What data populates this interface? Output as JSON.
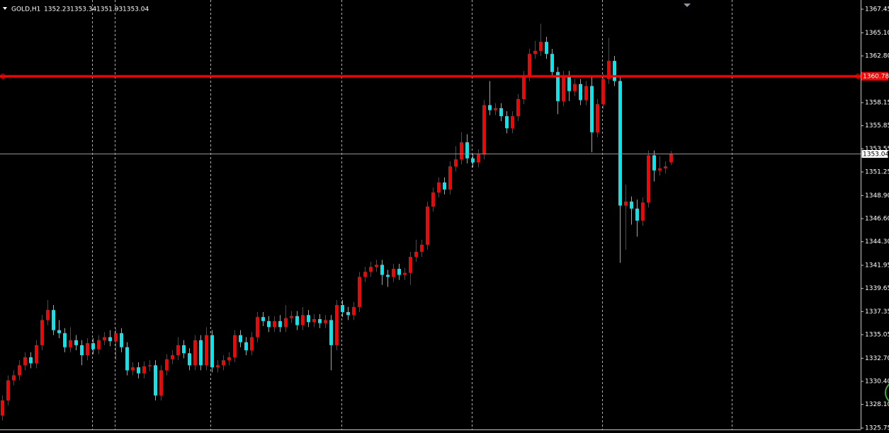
{
  "chart_data": {
    "type": "candlestick",
    "title": "GOLD,H1",
    "up_color": "#ff0000",
    "down_color": "#00e8f0",
    "open": [
      1327.0,
      1328.5,
      1330.5,
      1331.0,
      1332.0,
      1332.8,
      1332.2,
      1334.0,
      1336.5,
      1337.5,
      1335.5,
      1335.2,
      1333.8,
      1334.5,
      1334.0,
      1333.0,
      1334.2,
      1333.6,
      1334.5,
      1334.8,
      1334.4,
      1335.2,
      1333.8,
      1331.5,
      1331.8,
      1331.2,
      1331.9,
      1332.0,
      1329.0,
      1331.5,
      1332.6,
      1333.0,
      1334.0,
      1333.2,
      1332.0,
      1334.5,
      1332.0,
      1335.0,
      1331.8,
      1332.0,
      1332.5,
      1332.8,
      1335.0,
      1334.3,
      1333.5,
      1334.8,
      1336.8,
      1336.4,
      1335.8,
      1336.4,
      1335.8,
      1336.7,
      1336.9,
      1336.0,
      1337.0,
      1336.3,
      1336.6,
      1336.2,
      1336.5,
      1334.0,
      1338.0,
      1337.3,
      1337.0,
      1337.8,
      1340.8,
      1341.3,
      1341.8,
      1342.0,
      1341.0,
      1340.8,
      1341.6,
      1341.0,
      1341.2,
      1342.8,
      1343.3,
      1344.0,
      1347.8,
      1349.2,
      1350.2,
      1349.5,
      1351.8,
      1352.5,
      1354.2,
      1352.6,
      1352.2,
      1353.0,
      1357.9,
      1357.4,
      1357.6,
      1356.8,
      1355.6,
      1356.8,
      1358.5,
      1360.8,
      1363.0,
      1363.3,
      1364.2,
      1363.0,
      1361.2,
      1358.3,
      1360.8,
      1359.3,
      1360.0,
      1358.4,
      1359.8,
      1355.2,
      1358.0,
      1360.5,
      1362.3,
      1360.3,
      1347.9,
      1348.3,
      1347.6,
      1346.4,
      1348.2,
      1352.9,
      1351.4,
      1351.6,
      1352.23
    ],
    "high": [
      1329.0,
      1331.0,
      1331.5,
      1332.5,
      1333.3,
      1333.3,
      1334.5,
      1337.0,
      1338.5,
      1338.0,
      1336.5,
      1335.7,
      1335.8,
      1335.0,
      1334.5,
      1334.7,
      1334.7,
      1335.0,
      1335.3,
      1335.5,
      1335.7,
      1335.7,
      1334.3,
      1332.3,
      1332.3,
      1332.4,
      1332.5,
      1332.5,
      1332.0,
      1333.1,
      1333.5,
      1334.8,
      1334.5,
      1333.7,
      1335.0,
      1335.0,
      1335.8,
      1335.5,
      1332.5,
      1333.0,
      1333.3,
      1335.5,
      1335.5,
      1334.8,
      1335.3,
      1337.3,
      1337.3,
      1336.9,
      1336.9,
      1337.0,
      1338.0,
      1337.4,
      1337.4,
      1337.8,
      1337.5,
      1337.1,
      1337.1,
      1337.0,
      1337.0,
      1338.5,
      1338.5,
      1337.8,
      1338.3,
      1341.3,
      1341.8,
      1342.3,
      1342.5,
      1342.5,
      1341.5,
      1342.1,
      1342.1,
      1341.7,
      1343.3,
      1344.5,
      1344.5,
      1348.3,
      1349.7,
      1350.7,
      1350.7,
      1352.3,
      1353.8,
      1355.2,
      1355.0,
      1353.1,
      1353.5,
      1358.4,
      1360.3,
      1358.1,
      1358.1,
      1357.3,
      1357.3,
      1359.0,
      1361.3,
      1363.5,
      1364.3,
      1366.0,
      1364.7,
      1363.5,
      1361.7,
      1361.3,
      1361.3,
      1360.5,
      1360.5,
      1360.3,
      1360.8,
      1358.5,
      1361.0,
      1364.6,
      1362.8,
      1360.8,
      1350.0,
      1348.8,
      1348.5,
      1348.7,
      1353.4,
      1353.4,
      1352.8,
      1352.3,
      1353.34
    ],
    "low": [
      1326.5,
      1328.0,
      1330.0,
      1330.5,
      1331.5,
      1331.7,
      1331.7,
      1333.5,
      1336.0,
      1335.0,
      1334.7,
      1333.3,
      1333.3,
      1333.5,
      1332.0,
      1332.5,
      1333.1,
      1333.1,
      1334.0,
      1333.9,
      1332.5,
      1333.3,
      1331.0,
      1331.0,
      1330.7,
      1330.7,
      1331.4,
      1328.5,
      1328.5,
      1331.0,
      1332.1,
      1332.5,
      1332.7,
      1331.5,
      1331.5,
      1331.5,
      1331.5,
      1331.3,
      1331.3,
      1331.5,
      1332.0,
      1332.3,
      1333.8,
      1333.0,
      1333.0,
      1334.3,
      1335.9,
      1335.3,
      1335.3,
      1335.3,
      1335.3,
      1336.2,
      1335.5,
      1335.5,
      1335.8,
      1335.8,
      1335.7,
      1335.7,
      1331.5,
      1333.5,
      1336.8,
      1336.5,
      1336.5,
      1337.3,
      1340.3,
      1340.8,
      1341.3,
      1340.0,
      1339.8,
      1340.3,
      1340.5,
      1340.5,
      1340.0,
      1342.3,
      1342.8,
      1343.5,
      1347.3,
      1348.7,
      1349.0,
      1349.0,
      1351.3,
      1352.0,
      1352.1,
      1351.7,
      1351.7,
      1352.5,
      1356.9,
      1356.9,
      1356.3,
      1355.1,
      1355.1,
      1356.3,
      1358.0,
      1360.3,
      1362.5,
      1362.8,
      1362.5,
      1360.7,
      1357.0,
      1357.8,
      1358.3,
      1358.8,
      1357.9,
      1357.9,
      1353.2,
      1354.7,
      1357.5,
      1360.0,
      1359.8,
      1342.2,
      1343.5,
      1346.0,
      1344.8,
      1345.9,
      1347.7,
      1350.3,
      1350.9,
      1351.1,
      1351.93
    ],
    "close": [
      1328.5,
      1330.5,
      1331.0,
      1332.0,
      1332.8,
      1332.2,
      1334.0,
      1336.5,
      1337.5,
      1335.5,
      1335.2,
      1333.8,
      1334.5,
      1334.0,
      1333.0,
      1334.2,
      1333.6,
      1334.5,
      1334.8,
      1334.4,
      1335.2,
      1333.8,
      1331.5,
      1331.8,
      1331.2,
      1331.9,
      1332.0,
      1329.0,
      1331.5,
      1332.6,
      1333.0,
      1334.0,
      1333.2,
      1332.0,
      1334.5,
      1332.0,
      1335.0,
      1331.8,
      1332.0,
      1332.5,
      1332.8,
      1335.0,
      1334.3,
      1333.5,
      1334.8,
      1336.8,
      1336.4,
      1335.8,
      1336.4,
      1335.8,
      1336.7,
      1336.9,
      1336.0,
      1337.0,
      1336.3,
      1336.6,
      1336.2,
      1336.5,
      1334.0,
      1338.0,
      1337.3,
      1337.0,
      1337.8,
      1340.8,
      1341.3,
      1341.8,
      1342.0,
      1341.0,
      1340.8,
      1341.6,
      1341.0,
      1341.2,
      1342.8,
      1343.3,
      1344.0,
      1347.8,
      1349.2,
      1350.2,
      1349.5,
      1351.8,
      1352.5,
      1354.2,
      1352.6,
      1352.2,
      1353.0,
      1357.9,
      1357.4,
      1357.6,
      1356.8,
      1355.6,
      1356.8,
      1358.5,
      1360.8,
      1363.0,
      1363.3,
      1364.2,
      1363.0,
      1361.2,
      1358.3,
      1360.8,
      1359.3,
      1360.0,
      1358.4,
      1359.8,
      1355.2,
      1358.0,
      1360.5,
      1362.3,
      1360.3,
      1347.9,
      1348.3,
      1347.6,
      1346.4,
      1348.2,
      1352.9,
      1351.4,
      1351.6,
      1351.8,
      1353.04
    ],
    "ylim": [
      1325.75,
      1367.45
    ],
    "yticks": [
      1367.45,
      {
        "value": 1365.1,
        "label": "1365.10"
      },
      {
        "value": 1362.8,
        "label": "1362.80"
      },
      1358.15,
      1355.85,
      1353.55,
      1351.25,
      {
        "value": 1348.9,
        "label": "1348.90"
      },
      {
        "value": 1346.6,
        "label": "1346.60"
      },
      {
        "value": 1344.3,
        "label": "1344.30"
      },
      1341.95,
      1339.65,
      1337.35,
      1335.05,
      {
        "value": 1332.7,
        "label": "1332.70"
      },
      {
        "value": 1330.4,
        "label": "1330.40"
      },
      {
        "value": 1328.1,
        "label": "1328.10"
      },
      1325.75
    ],
    "hlines": [
      {
        "value": 1360.78,
        "color": "#ff0000"
      }
    ],
    "price_line_color": "#8a9aa8"
  }
}
